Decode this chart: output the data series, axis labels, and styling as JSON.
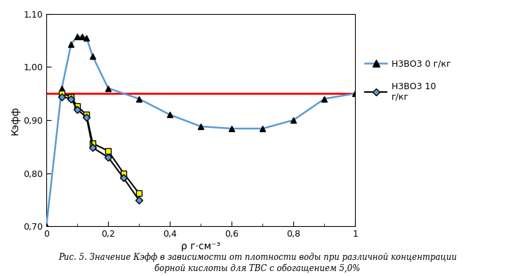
{
  "xlabel": "ρ г·см⁻³",
  "ylabel": "Кэфф",
  "caption_line1": "Рис. 5. Значение Кэфф в зависимости от плотности воды при различной концентрации",
  "caption_line2": "борной кислоты для ТВС с обогащением 5,0%",
  "ylim": [
    0.7,
    1.1
  ],
  "xlim": [
    0.0,
    1.0
  ],
  "yticks": [
    0.7,
    0.8,
    0.9,
    1.0,
    1.1
  ],
  "ytick_labels": [
    "0,70",
    "0,80",
    "0,90",
    "1,00",
    "1,10"
  ],
  "xticks": [
    0.0,
    0.2,
    0.4,
    0.6,
    0.8,
    1.0
  ],
  "xtick_labels": [
    "0",
    "0,2",
    "0,4",
    "0,6",
    "0,8",
    "1"
  ],
  "hline_y": 0.95,
  "hline_color": "#ff0000",
  "series1_label": "Н3ВО3 0 г/кг",
  "series1_x": [
    0.0,
    0.05,
    0.08,
    0.1,
    0.115,
    0.13,
    0.15,
    0.2,
    0.3,
    0.4,
    0.5,
    0.6,
    0.7,
    0.8,
    0.9,
    1.0
  ],
  "series1_y": [
    0.7,
    0.96,
    1.043,
    1.057,
    1.057,
    1.055,
    1.02,
    0.96,
    0.94,
    0.91,
    0.888,
    0.884,
    0.884,
    0.9,
    0.94,
    0.95
  ],
  "series1_color": "#5b9bd5",
  "series1_linewidth": 1.8,
  "series1_marker": "^",
  "series1_markersize": 6,
  "series1_markercolor": "#000000",
  "series2_label": "Н3ВО3 10\nг/кг",
  "series2_x": [
    0.05,
    0.08,
    0.1,
    0.13,
    0.15,
    0.2,
    0.25,
    0.3
  ],
  "series2_y": [
    0.944,
    0.94,
    0.92,
    0.905,
    0.848,
    0.83,
    0.791,
    0.749
  ],
  "series2_color": "#000000",
  "series2_linewidth": 1.5,
  "series2_marker": "D",
  "series2_markersize": 5,
  "series2_markerface": "#5b9bd5",
  "series3_x": [
    0.05,
    0.08,
    0.1,
    0.13,
    0.15,
    0.2,
    0.25,
    0.3
  ],
  "series3_y": [
    0.95,
    0.944,
    0.926,
    0.91,
    0.856,
    0.842,
    0.8,
    0.762
  ],
  "series3_color": "#000000",
  "series3_linewidth": 1.5,
  "series3_marker": "s",
  "series3_markersize": 6,
  "series3_markerface": "#ffff00",
  "background_color": "#ffffff"
}
